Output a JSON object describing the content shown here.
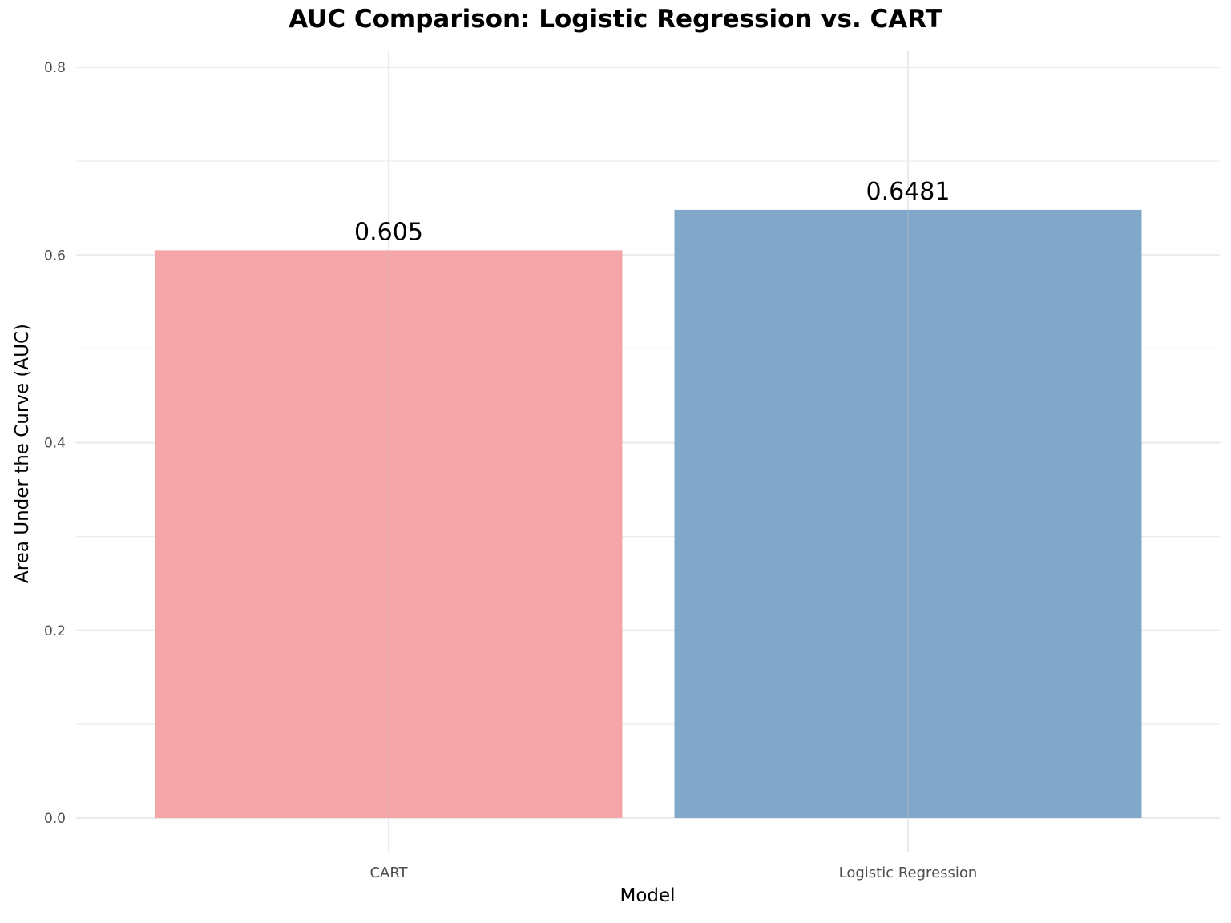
{
  "title": "AUC Comparison: Logistic Regression vs. CART",
  "xlabel": "Model",
  "ylabel": "Area Under the Curve (AUC)",
  "colors": {
    "CART": "#F4A3A5",
    "Logistic Regression": "#7EA6CA",
    "grid": "#EBEBEB"
  },
  "chart_data": {
    "type": "bar",
    "title": "AUC Comparison: Logistic Regression vs. CART",
    "xlabel": "Model",
    "ylabel": "Area Under the Curve (AUC)",
    "categories": [
      "CART",
      "Logistic Regression"
    ],
    "values": [
      0.605,
      0.6481
    ],
    "data_labels": [
      "0.605",
      "0.6481"
    ],
    "ylim": [
      0,
      0.8
    ],
    "yticks": [
      "0.0",
      "0.2",
      "0.4",
      "0.6",
      "0.8"
    ],
    "grid": true,
    "legend": "none"
  }
}
